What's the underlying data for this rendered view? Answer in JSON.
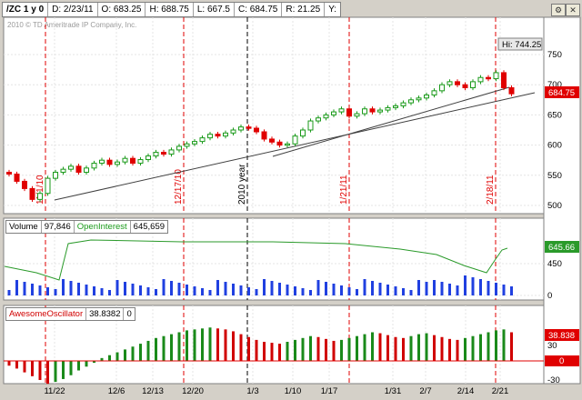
{
  "infobar": {
    "symbol": "/ZC 1 y 0",
    "date": "D: 2/23/11",
    "open": "O: 683.25",
    "high": "H: 688.75",
    "low": "L: 667.5",
    "close": "C: 684.75",
    "range": "R: 21.25",
    "y": "Y:"
  },
  "copyright": "2010 © TD Ameritrade IP Company, Inc.",
  "price_panel": {
    "hi_label": "Hi: 744.25",
    "last_price": "684.75",
    "y_ticks": [
      "750",
      "700",
      "650",
      "600",
      "550",
      "500"
    ],
    "markers": [
      "11/1/10",
      "12/17/10",
      "2010 year",
      "1/21/11",
      "2/18/11"
    ],
    "up_color": "#1a9a1a",
    "down_color": "#e00000"
  },
  "volume_panel": {
    "label": "Volume",
    "volume_value": "97,846",
    "oi_label": "OpenInterest",
    "oi_value": "645,659",
    "last_oi": "645.66",
    "y_ticks": [
      "450",
      "0"
    ],
    "bar_color": "#2040e0",
    "line_color": "#2a9a2a"
  },
  "ao_panel": {
    "label": "AwesomeOscillator",
    "value1": "38.8382",
    "value2": "0",
    "last_value": "38.838",
    "zero_value": "0",
    "y_ticks": [
      "30",
      "-30"
    ]
  },
  "x_axis": [
    "11/22",
    "12/6",
    "12/13",
    "12/20",
    "1/3",
    "1/10",
    "1/17",
    "1/31",
    "2/7",
    "2/14",
    "2/21"
  ]
}
